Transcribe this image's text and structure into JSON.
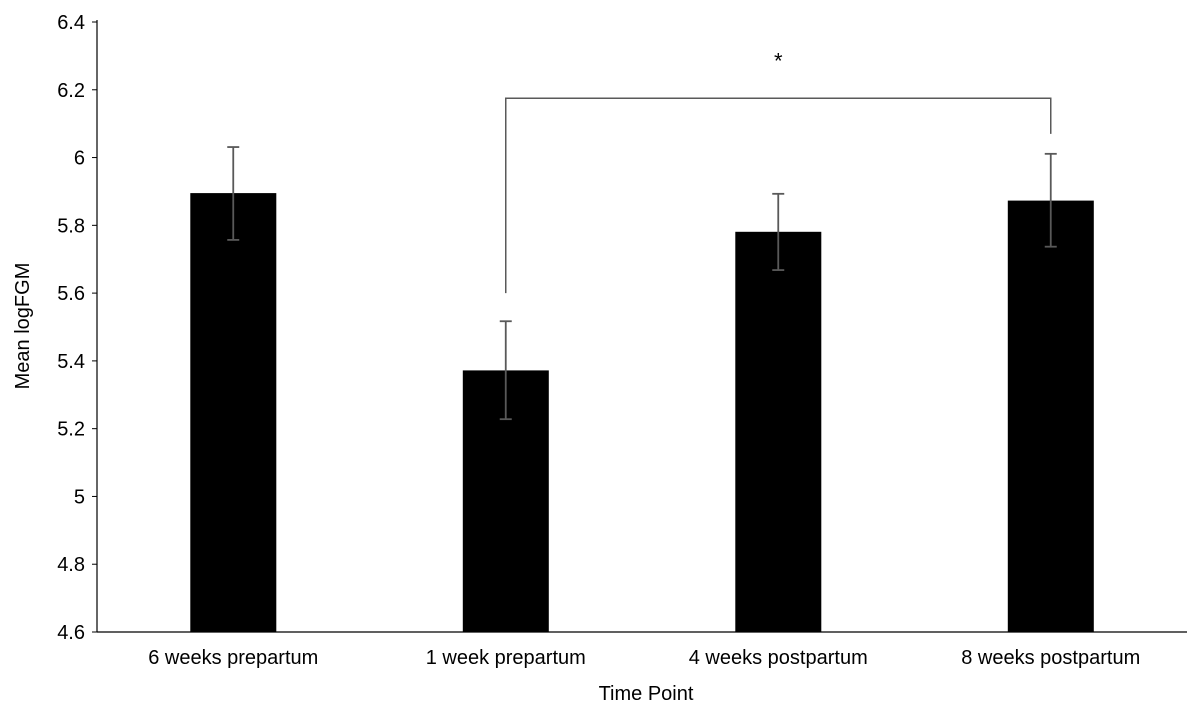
{
  "chart_data": {
    "type": "bar",
    "title": "",
    "xlabel": "Time Point",
    "ylabel": "Mean logFGM",
    "categories": [
      "6 weeks prepartum",
      "1 week prepartum",
      "4 weeks postpartum",
      "8 weeks postpartum"
    ],
    "values": [
      5.895,
      5.372,
      5.781,
      5.873
    ],
    "error_upper": [
      6.031,
      5.517,
      5.893,
      6.011
    ],
    "error_lower": [
      5.757,
      5.228,
      5.668,
      5.737
    ],
    "ylim": [
      4.6,
      6.4
    ],
    "yticks": [
      "4.6",
      "4.8",
      "5",
      "5.2",
      "5.4",
      "5.6",
      "5.8",
      "6",
      "6.2",
      "6.4"
    ],
    "grid": false,
    "bar_color": "#000000",
    "error_bar_color": "#595959",
    "annotations": [
      {
        "type": "significance-bracket",
        "label": "*",
        "from_category": 1,
        "to_category": 3,
        "bracket_y": 6.175,
        "left_end_y": 5.6,
        "right_end_y": 6.07
      }
    ]
  }
}
